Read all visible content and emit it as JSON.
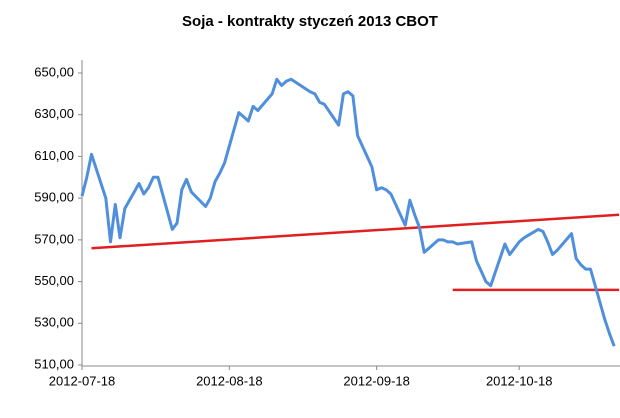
{
  "chart_data": {
    "type": "line",
    "title": "Soja - kontrakty styczeń 2013 CBOT",
    "x": [
      "2012-07-18",
      "2012-07-19",
      "2012-07-20",
      "2012-07-23",
      "2012-07-24",
      "2012-07-25",
      "2012-07-26",
      "2012-07-27",
      "2012-07-30",
      "2012-07-31",
      "2012-08-01",
      "2012-08-02",
      "2012-08-03",
      "2012-08-06",
      "2012-08-07",
      "2012-08-08",
      "2012-08-09",
      "2012-08-10",
      "2012-08-13",
      "2012-08-14",
      "2012-08-15",
      "2012-08-16",
      "2012-08-17",
      "2012-08-20",
      "2012-08-21",
      "2012-08-22",
      "2012-08-23",
      "2012-08-24",
      "2012-08-27",
      "2012-08-28",
      "2012-08-29",
      "2012-08-30",
      "2012-08-31",
      "2012-09-04",
      "2012-09-05",
      "2012-09-06",
      "2012-09-07",
      "2012-09-10",
      "2012-09-11",
      "2012-09-12",
      "2012-09-13",
      "2012-09-14",
      "2012-09-17",
      "2012-09-18",
      "2012-09-19",
      "2012-09-20",
      "2012-09-21",
      "2012-09-24",
      "2012-09-25",
      "2012-09-26",
      "2012-09-27",
      "2012-09-28",
      "2012-10-01",
      "2012-10-02",
      "2012-10-03",
      "2012-10-04",
      "2012-10-05",
      "2012-10-08",
      "2012-10-09",
      "2012-10-10",
      "2012-10-11",
      "2012-10-12",
      "2012-10-15",
      "2012-10-16",
      "2012-10-17",
      "2012-10-18",
      "2012-10-19",
      "2012-10-22",
      "2012-10-23",
      "2012-10-24",
      "2012-10-25",
      "2012-10-26",
      "2012-10-29",
      "2012-10-30",
      "2012-10-31",
      "2012-11-01",
      "2012-11-02",
      "2012-11-05",
      "2012-11-06",
      "2012-11-07"
    ],
    "series": [
      {
        "color": "#4f8fdc",
        "values": [
          591,
          600,
          611,
          590,
          569,
          587,
          571,
          585,
          597,
          592,
          595,
          600,
          600,
          575,
          578,
          594,
          599,
          593,
          586,
          590,
          598,
          602,
          607,
          631,
          629,
          627,
          634,
          632,
          640,
          647,
          644,
          646,
          647,
          641,
          640,
          636,
          635,
          625,
          640,
          641,
          639,
          620,
          605,
          594,
          595,
          594,
          592,
          577,
          589,
          582,
          576,
          564,
          570,
          570,
          569,
          569,
          568,
          569,
          560,
          555,
          550,
          548,
          568,
          563,
          566,
          569,
          571,
          575,
          574,
          569,
          563,
          565,
          573,
          561,
          558,
          556,
          556,
          532,
          525,
          519
        ]
      }
    ],
    "trend_lines": [
      {
        "color": "#e02020",
        "x": [
          "2012-07-20",
          "2012-11-08"
        ],
        "values": [
          566,
          582
        ]
      },
      {
        "color": "#e02020",
        "x": [
          "2012-10-04",
          "2012-11-08"
        ],
        "values": [
          546,
          546
        ]
      }
    ],
    "xlim": [
      "2012-07-18",
      "2012-11-08"
    ],
    "xticks": [
      "2012-07-18",
      "2012-08-18",
      "2012-09-18",
      "2012-10-18"
    ],
    "ylim": [
      510,
      650
    ],
    "yticks": [
      {
        "value": 510,
        "label": "510,00"
      },
      {
        "value": 530,
        "label": "530,00"
      },
      {
        "value": 550,
        "label": "550,00"
      },
      {
        "value": 570,
        "label": "570,00"
      },
      {
        "value": 590,
        "label": "590,00"
      },
      {
        "value": 610,
        "label": "610,00"
      },
      {
        "value": 630,
        "label": "630,00"
      },
      {
        "value": 650,
        "label": "650,00"
      }
    ],
    "grid": false
  }
}
